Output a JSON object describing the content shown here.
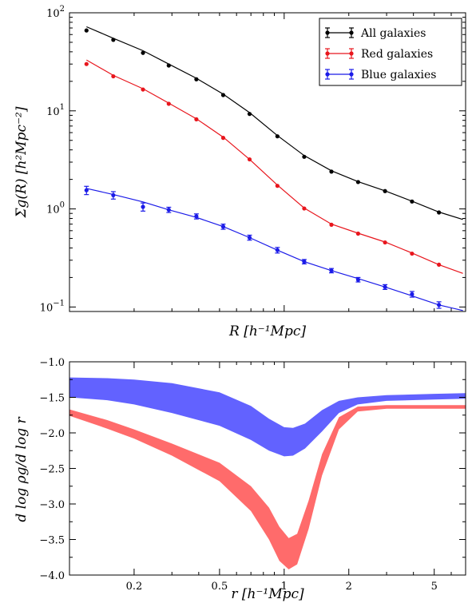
{
  "chart_data": [
    {
      "type": "line",
      "xscale": "log",
      "yscale": "log",
      "xlim": [
        0.1,
        7.0
      ],
      "ylim": [
        0.09,
        100
      ],
      "xlabel": "R [h⁻¹Mpc]",
      "ylabel": "Σg(R) [h²Mpc⁻²]",
      "yticks": [
        {
          "value": 0.1,
          "base": "10",
          "exp": "−1"
        },
        {
          "value": 1,
          "base": "10",
          "exp": "0"
        },
        {
          "value": 10,
          "base": "10",
          "exp": "1"
        },
        {
          "value": 100,
          "base": "10",
          "exp": "2"
        }
      ],
      "legend": "top-right",
      "series": [
        {
          "name": "All galaxies",
          "color": "#000000",
          "x": [
            0.12,
            0.16,
            0.22,
            0.29,
            0.39,
            0.52,
            0.69,
            0.93,
            1.24,
            1.66,
            2.21,
            2.95,
            3.94,
            5.26,
            6.8
          ],
          "y": [
            66,
            53,
            39,
            29,
            21,
            14.5,
            9.3,
            5.5,
            3.4,
            2.4,
            1.88,
            1.52,
            1.19,
            0.92,
            null
          ],
          "y_model": [
            72,
            55,
            41,
            30,
            21.5,
            14.8,
            9.6,
            5.6,
            3.5,
            2.45,
            1.9,
            1.53,
            1.2,
            0.93,
            0.78
          ]
        },
        {
          "name": "Red galaxies",
          "color": "#e8161d",
          "x": [
            0.12,
            0.16,
            0.22,
            0.29,
            0.39,
            0.52,
            0.69,
            0.93,
            1.24,
            1.66,
            2.21,
            2.95,
            3.94,
            5.26,
            6.8
          ],
          "y": [
            30,
            22.5,
            16.5,
            11.8,
            8.2,
            5.3,
            3.2,
            1.72,
            1.01,
            0.69,
            0.56,
            0.455,
            0.35,
            0.27,
            null
          ],
          "y_model": [
            33,
            23,
            16.8,
            12,
            8.3,
            5.4,
            3.2,
            1.75,
            1.02,
            0.7,
            0.565,
            0.46,
            0.355,
            0.27,
            0.22
          ]
        },
        {
          "name": "Blue galaxies",
          "color": "#1b1be8",
          "x": [
            0.12,
            0.16,
            0.22,
            0.29,
            0.39,
            0.52,
            0.69,
            0.93,
            1.24,
            1.66,
            2.21,
            2.95,
            3.94,
            5.26,
            6.8
          ],
          "y": [
            1.55,
            1.38,
            1.05,
            0.98,
            0.84,
            0.66,
            0.51,
            0.38,
            0.29,
            0.235,
            0.19,
            0.16,
            0.135,
            0.105,
            null
          ],
          "yerr": [
            0.15,
            0.12,
            0.1,
            0.06,
            0.05,
            0.04,
            0.03,
            0.025,
            0.015,
            0.012,
            0.01,
            0.009,
            0.009,
            0.008,
            null
          ],
          "y_model": [
            1.62,
            1.4,
            1.18,
            0.98,
            0.82,
            0.66,
            0.51,
            0.38,
            0.29,
            0.235,
            0.195,
            0.16,
            0.13,
            0.105,
            0.092
          ]
        }
      ]
    },
    {
      "type": "area",
      "xscale": "log",
      "xlim": [
        0.1,
        7.0
      ],
      "ylim": [
        -4.0,
        -1.0
      ],
      "xlabel": "r [h⁻¹Mpc]",
      "ylabel": "d log ρg/d log r",
      "xticks": [
        {
          "value": 0.2,
          "label": "0.2"
        },
        {
          "value": 0.5,
          "label": "0.5"
        },
        {
          "value": 1,
          "label": "1"
        },
        {
          "value": 2,
          "label": "2"
        },
        {
          "value": 5,
          "label": "5"
        }
      ],
      "yticks": [
        {
          "value": -1.0,
          "label": "−1.0"
        },
        {
          "value": -1.5,
          "label": "−1.5"
        },
        {
          "value": -2.0,
          "label": "−2.0"
        },
        {
          "value": -2.5,
          "label": "−2.5"
        },
        {
          "value": -3.0,
          "label": "−3.0"
        },
        {
          "value": -3.5,
          "label": "−3.5"
        },
        {
          "value": -4.0,
          "label": "−4.0"
        }
      ],
      "bands": [
        {
          "color": "#ff6b6b",
          "x": [
            0.1,
            0.15,
            0.2,
            0.3,
            0.5,
            0.7,
            0.85,
            0.95,
            1.05,
            1.15,
            1.3,
            1.5,
            1.8,
            2.2,
            3,
            5,
            7
          ],
          "upper": [
            -1.67,
            -1.82,
            -1.95,
            -2.15,
            -2.42,
            -2.75,
            -3.05,
            -3.32,
            -3.48,
            -3.42,
            -2.95,
            -2.3,
            -1.78,
            -1.63,
            -1.61,
            -1.61,
            -1.61
          ],
          "lower": [
            -1.76,
            -1.94,
            -2.08,
            -2.32,
            -2.68,
            -3.1,
            -3.5,
            -3.8,
            -3.92,
            -3.85,
            -3.35,
            -2.6,
            -1.95,
            -1.7,
            -1.66,
            -1.66,
            -1.66
          ]
        },
        {
          "color": "#6262ff",
          "x": [
            0.1,
            0.15,
            0.2,
            0.3,
            0.5,
            0.7,
            0.85,
            1.0,
            1.1,
            1.25,
            1.5,
            1.8,
            2.2,
            3,
            5,
            7
          ],
          "upper": [
            -1.22,
            -1.23,
            -1.25,
            -1.3,
            -1.43,
            -1.62,
            -1.8,
            -1.92,
            -1.93,
            -1.87,
            -1.68,
            -1.55,
            -1.5,
            -1.47,
            -1.45,
            -1.44
          ],
          "lower": [
            -1.5,
            -1.54,
            -1.6,
            -1.72,
            -1.9,
            -2.1,
            -2.25,
            -2.33,
            -2.32,
            -2.22,
            -1.98,
            -1.72,
            -1.6,
            -1.55,
            -1.53,
            -1.52
          ]
        }
      ]
    }
  ]
}
